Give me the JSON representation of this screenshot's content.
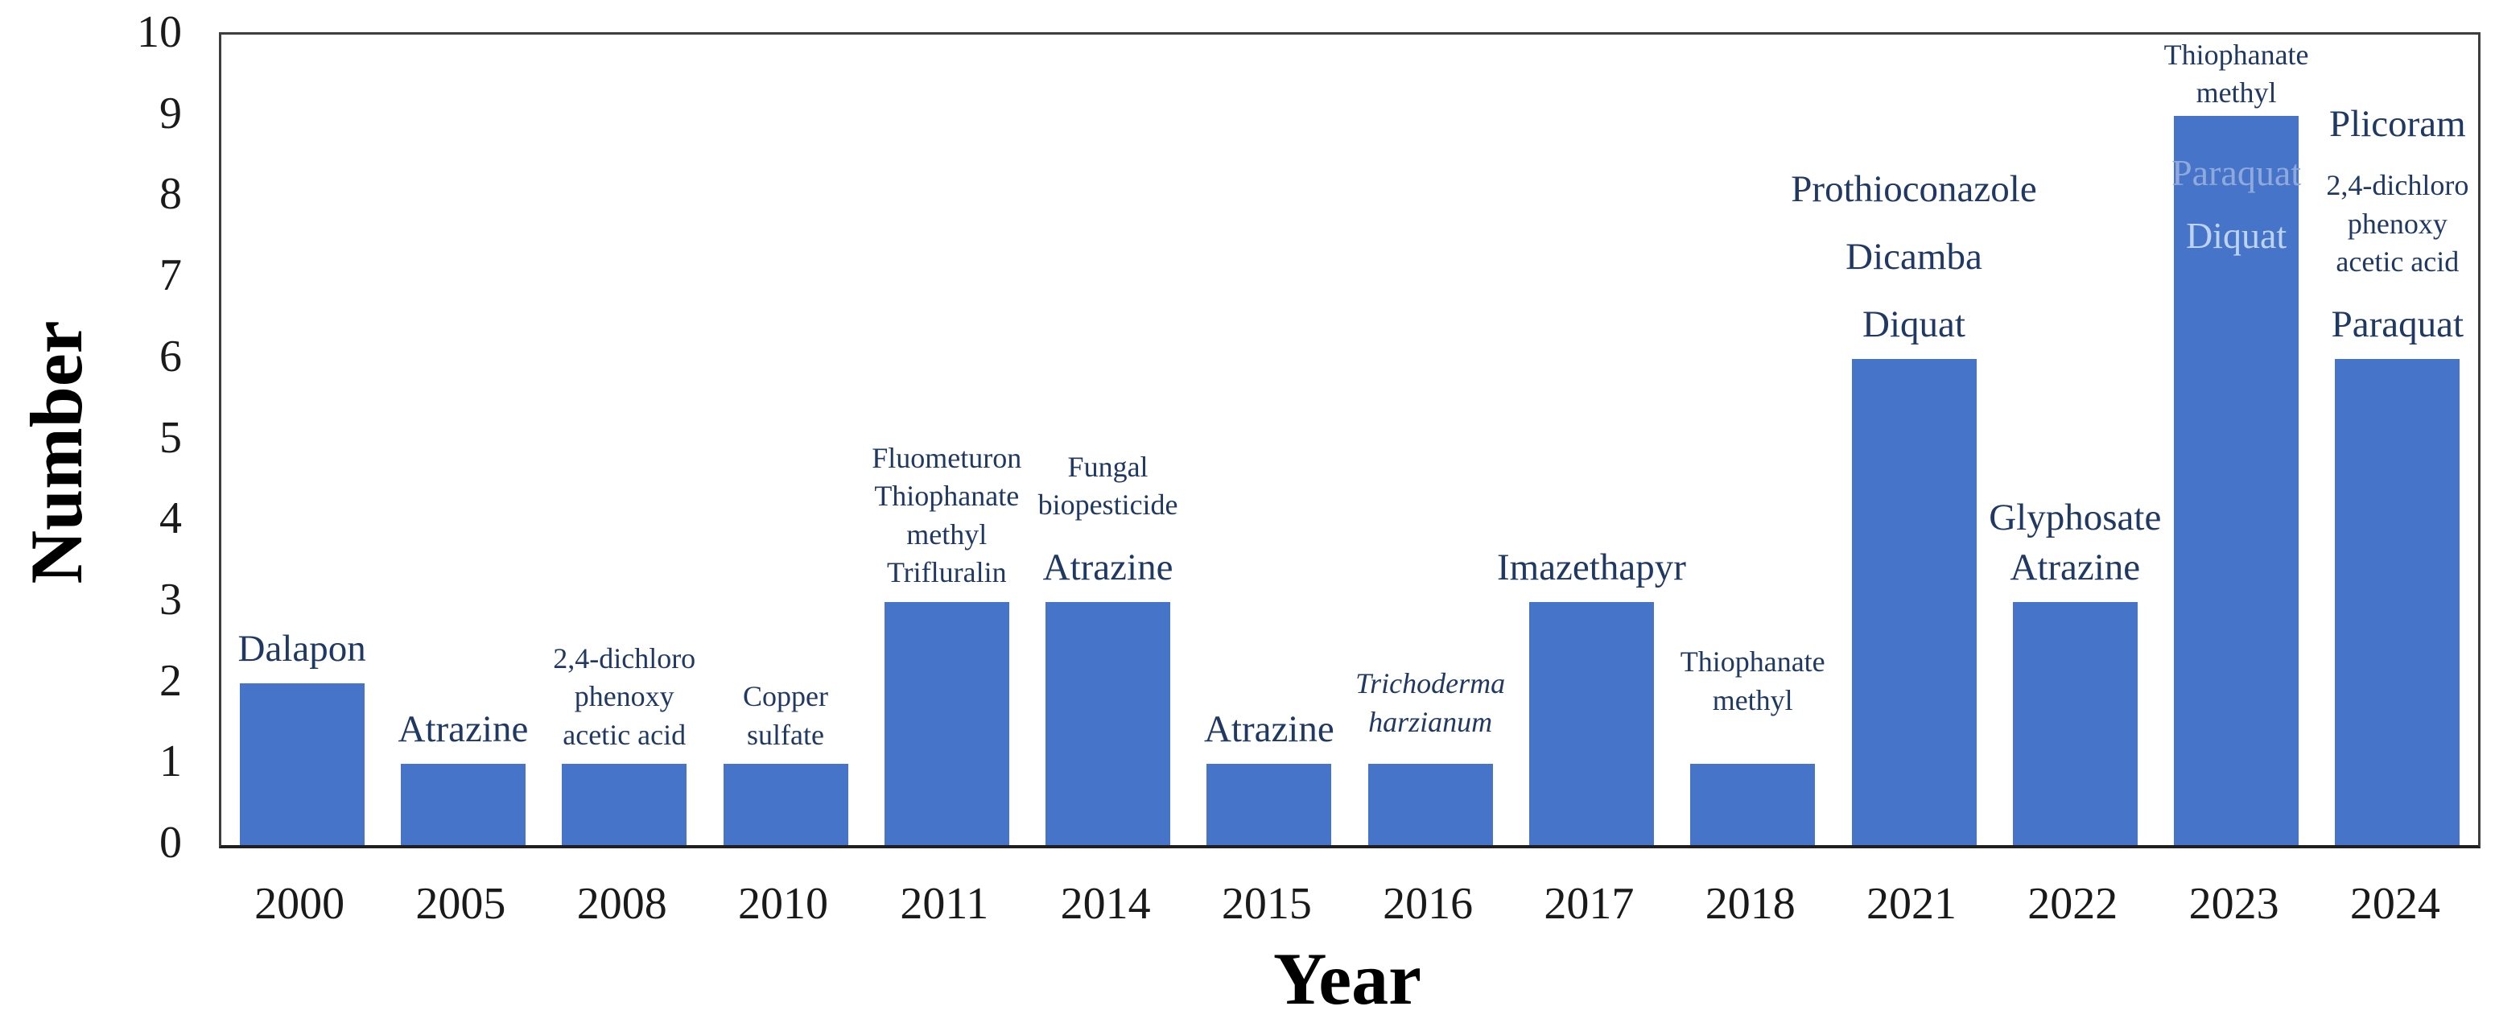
{
  "figure": {
    "background": "#ffffff",
    "border_color": "#3d3d3d"
  },
  "chart_data": {
    "type": "bar",
    "title": "",
    "xlabel": "Year",
    "ylabel": "Number",
    "ylim": [
      0,
      10
    ],
    "yticks": [
      0,
      1,
      2,
      3,
      4,
      5,
      6,
      7,
      8,
      9,
      10
    ],
    "grid": false,
    "legend": false,
    "bar_color": "#4674C8",
    "annotation_color": "#1F3864",
    "categories": [
      "2000",
      "2005",
      "2008",
      "2010",
      "2011",
      "2014",
      "2015",
      "2016",
      "2017",
      "2018",
      "2021",
      "2022",
      "2023",
      "2024"
    ],
    "values": [
      2,
      1,
      1,
      1,
      3,
      3,
      1,
      1,
      3,
      1,
      6,
      3,
      9,
      6
    ],
    "bars": [
      {
        "year": "2000",
        "value": 2,
        "above": [
          {
            "t": "Dalapon",
            "s": "lg"
          }
        ]
      },
      {
        "year": "2005",
        "value": 1,
        "above": [
          {
            "t": "Atrazine",
            "s": "lg"
          }
        ]
      },
      {
        "year": "2008",
        "value": 1,
        "above": [
          {
            "t": "2,4-dichloro",
            "s": "sm"
          },
          {
            "t": "phenoxy",
            "s": "sm"
          },
          {
            "t": "acetic acid",
            "s": "sm"
          }
        ]
      },
      {
        "year": "2010",
        "value": 1,
        "above": [
          {
            "t": "Copper",
            "s": "sm"
          },
          {
            "t": "sulfate",
            "s": "sm"
          }
        ]
      },
      {
        "year": "2011",
        "value": 3,
        "above": [
          {
            "t": "Fluometuron",
            "s": "sm"
          },
          {
            "t": "Thiophanate",
            "s": "sm"
          },
          {
            "t": "methyl",
            "s": "sm"
          },
          {
            "t": "Trifluralin",
            "s": "sm"
          }
        ]
      },
      {
        "year": "2014",
        "value": 3,
        "above": [
          {
            "t": "Fungal",
            "s": "sm"
          },
          {
            "t": "biopesticide",
            "s": "sm"
          },
          {
            "t": "Atrazine",
            "s": "lg",
            "gap": true
          }
        ]
      },
      {
        "year": "2015",
        "value": 1,
        "above": [
          {
            "t": "Atrazine",
            "s": "lg"
          }
        ]
      },
      {
        "year": "2016",
        "value": 1,
        "lift": 28,
        "above": [
          {
            "t": "Trichoderma",
            "s": "sm",
            "italic": true
          },
          {
            "t": "harzianum",
            "s": "sm",
            "italic": true
          }
        ]
      },
      {
        "year": "2017",
        "value": 3,
        "above": [
          {
            "t": "Imazethapyr",
            "s": "lg"
          }
        ]
      },
      {
        "year": "2018",
        "value": 1,
        "lift": 55,
        "above": [
          {
            "t": "Thiophanate",
            "s": "sm"
          },
          {
            "t": "methyl",
            "s": "sm"
          }
        ]
      },
      {
        "year": "2021",
        "value": 6,
        "above": [
          {
            "t": "Prothioconazole",
            "s": "lg"
          },
          {
            "t": "Dicamba",
            "s": "lg",
            "gap": true
          },
          {
            "t": "Diquat",
            "s": "lg",
            "gap": true
          }
        ]
      },
      {
        "year": "2022",
        "value": 3,
        "above": [
          {
            "t": "Glyphosate",
            "s": "lg"
          },
          {
            "t": "Atrazine",
            "s": "lg"
          }
        ]
      },
      {
        "year": "2023",
        "value": 9,
        "lift": 4,
        "above": [
          {
            "t": "Thiophanate",
            "s": "sm"
          },
          {
            "t": "methyl",
            "s": "sm"
          }
        ],
        "inside": [
          {
            "t": "Paraquat",
            "color": "#8FA9DC"
          },
          {
            "t": "Diquat",
            "color": "#BDD3F0"
          }
        ]
      },
      {
        "year": "2024",
        "value": 6,
        "above": [
          {
            "t": "Plicoram",
            "s": "lg"
          },
          {
            "t": "2,4-dichloro",
            "s": "sm",
            "gap": true
          },
          {
            "t": "phenoxy",
            "s": "sm"
          },
          {
            "t": "acetic acid",
            "s": "sm"
          },
          {
            "t": "Paraquat",
            "s": "lg",
            "gap": true
          }
        ]
      }
    ]
  }
}
